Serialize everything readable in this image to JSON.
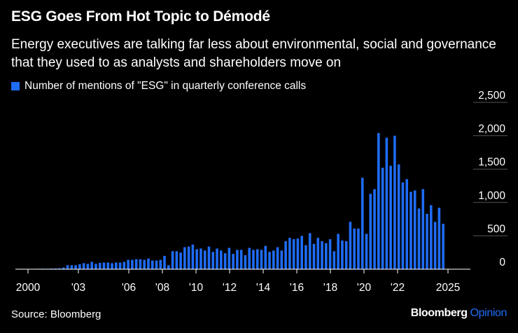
{
  "header": {
    "title": "ESG Goes From Hot Topic to Démodé",
    "subtitle": "Energy executives are talking far less about environmental, social and governance that they used to as analysts and shareholders move on"
  },
  "legend": {
    "label": "Number of mentions of \"ESG\" in quarterly conference calls",
    "color": "#1f6cf5"
  },
  "footer": {
    "source": "Source: Bloomberg",
    "brand": "Bloomberg",
    "brand_suffix": "Opinion"
  },
  "chart_data": {
    "type": "bar",
    "title": "ESG Goes From Hot Topic to Démodé",
    "series_name": "Number of mentions of \"ESG\" in quarterly conference calls",
    "bar_color": "#1f6cf5",
    "start_year": 2000,
    "periods_per_year": 4,
    "ylim": [
      0,
      2500
    ],
    "yticks": [
      0,
      500,
      1000,
      1500,
      2000,
      2500
    ],
    "ytick_labels": [
      "0",
      "500",
      "1,000",
      "1,500",
      "2,000",
      "2,500"
    ],
    "xlim": [
      2000,
      2025
    ],
    "xticks": [
      2000,
      2003,
      2006,
      2008,
      2010,
      2012,
      2014,
      2016,
      2018,
      2020,
      2022,
      2025
    ],
    "xtick_labels": [
      "2000",
      "'03",
      "'06",
      "'08",
      "'10",
      "'12",
      "'14",
      "'16",
      "'18",
      "'20",
      "'22",
      "2025"
    ],
    "grid": true,
    "values": [
      5,
      5,
      6,
      7,
      8,
      8,
      10,
      12,
      15,
      25,
      60,
      60,
      60,
      75,
      90,
      80,
      110,
      80,
      95,
      100,
      100,
      90,
      100,
      100,
      110,
      140,
      140,
      150,
      150,
      140,
      160,
      130,
      130,
      140,
      200,
      60,
      270,
      270,
      250,
      330,
      340,
      370,
      300,
      310,
      280,
      340,
      260,
      310,
      280,
      240,
      320,
      230,
      290,
      290,
      210,
      320,
      290,
      300,
      290,
      350,
      260,
      280,
      330,
      280,
      420,
      470,
      450,
      460,
      500,
      360,
      540,
      380,
      470,
      420,
      390,
      450,
      270,
      530,
      430,
      420,
      710,
      610,
      610,
      1370,
      530,
      1130,
      1200,
      2040,
      1520,
      1970,
      1550,
      2000,
      1570,
      1300,
      1350,
      1160,
      1180,
      910,
      1200,
      830,
      960,
      710,
      920,
      680
    ]
  }
}
